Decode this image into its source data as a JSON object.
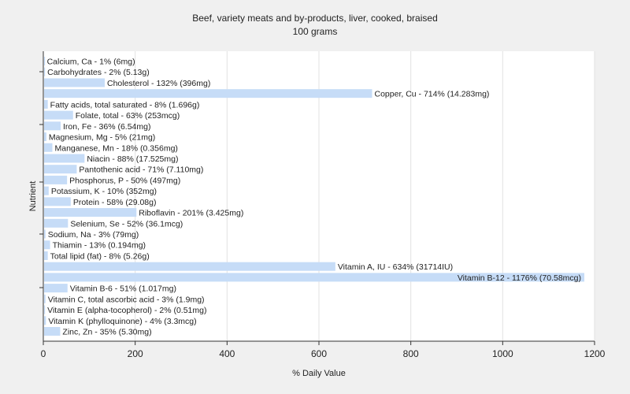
{
  "chart_data": {
    "type": "bar",
    "orientation": "horizontal",
    "title": "Beef,  variety meats and by-products, liver, cooked, braised",
    "subtitle": "100 grams",
    "xlabel": "% Daily Value",
    "ylabel": "Nutrient",
    "xlim": [
      0,
      1200
    ],
    "xticks": [
      0,
      200,
      400,
      600,
      800,
      1000,
      1200
    ],
    "grid": true,
    "bar_color": "#c6dcf7",
    "series": [
      {
        "categories": [
          "Calcium, Ca",
          "Carbohydrates",
          "Cholesterol",
          "Copper, Cu",
          "Fatty acids, total saturated",
          "Folate, total",
          "Iron, Fe",
          "Magnesium, Mg",
          "Manganese, Mn",
          "Niacin",
          "Pantothenic acid",
          "Phosphorus, P",
          "Potassium, K",
          "Protein",
          "Riboflavin",
          "Selenium, Se",
          "Sodium, Na",
          "Thiamin",
          "Total lipid (fat)",
          "Vitamin A, IU",
          "Vitamin B-12",
          "Vitamin B-6",
          "Vitamin C, total ascorbic acid",
          "Vitamin E (alpha-tocopherol)",
          "Vitamin K (phylloquinone)",
          "Zinc, Zn"
        ],
        "values": [
          1,
          2,
          132,
          714,
          8,
          63,
          36,
          5,
          18,
          88,
          71,
          50,
          10,
          58,
          201,
          52,
          3,
          13,
          8,
          634,
          1176,
          51,
          3,
          2,
          4,
          35
        ],
        "labels": [
          "Calcium, Ca - 1% (6mg)",
          "Carbohydrates - 2% (5.13g)",
          "Cholesterol - 132% (396mg)",
          "Copper, Cu - 714% (14.283mg)",
          "Fatty acids, total saturated - 8% (1.696g)",
          "Folate, total - 63% (253mcg)",
          "Iron, Fe - 36% (6.54mg)",
          "Magnesium, Mg - 5% (21mg)",
          "Manganese, Mn - 18% (0.356mg)",
          "Niacin - 88% (17.525mg)",
          "Pantothenic acid - 71% (7.110mg)",
          "Phosphorus, P - 50% (497mg)",
          "Potassium, K - 10% (352mg)",
          "Protein - 58% (29.08g)",
          "Riboflavin - 201% (3.425mg)",
          "Selenium, Se - 52% (36.1mcg)",
          "Sodium, Na - 3% (79mg)",
          "Thiamin - 13% (0.194mg)",
          "Total lipid (fat) - 8% (5.26g)",
          "Vitamin A, IU - 634% (31714IU)",
          "Vitamin B-12 - 1176% (70.58mcg)",
          "Vitamin B-6 - 51% (1.017mg)",
          "Vitamin C, total ascorbic acid - 3% (1.9mg)",
          "Vitamin E (alpha-tocopherol) - 2% (0.51mg)",
          "Vitamin K (phylloquinone) - 4% (3.3mcg)",
          "Zinc, Zn - 35% (5.30mg)"
        ]
      }
    ]
  }
}
